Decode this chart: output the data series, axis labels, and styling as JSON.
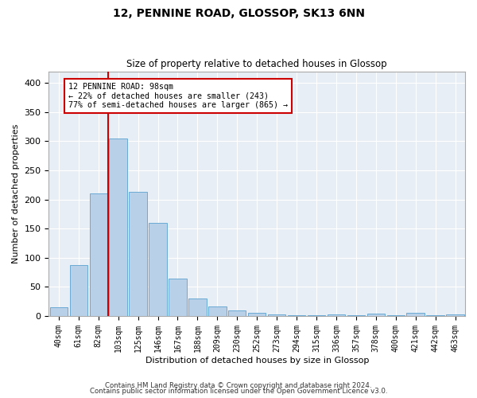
{
  "title": "12, PENNINE ROAD, GLOSSOP, SK13 6NN",
  "subtitle": "Size of property relative to detached houses in Glossop",
  "xlabel": "Distribution of detached houses by size in Glossop",
  "ylabel": "Number of detached properties",
  "categories": [
    "40sqm",
    "61sqm",
    "82sqm",
    "103sqm",
    "125sqm",
    "146sqm",
    "167sqm",
    "188sqm",
    "209sqm",
    "230sqm",
    "252sqm",
    "273sqm",
    "294sqm",
    "315sqm",
    "336sqm",
    "357sqm",
    "378sqm",
    "400sqm",
    "421sqm",
    "442sqm",
    "463sqm"
  ],
  "values": [
    15,
    88,
    210,
    304,
    213,
    160,
    64,
    30,
    16,
    10,
    6,
    3,
    2,
    1,
    3,
    1,
    4,
    1,
    5,
    1,
    3
  ],
  "bar_color": "#b8d0e8",
  "bar_edgecolor": "#6aaad4",
  "red_line_label": "12 PENNINE ROAD: 98sqm",
  "annotation_line1": "← 22% of detached houses are smaller (243)",
  "annotation_line2": "77% of semi-detached houses are larger (865) →",
  "vline_color": "#cc0000",
  "annotation_box_edgecolor": "#cc0000",
  "vline_x": 2.5,
  "ylim": [
    0,
    420
  ],
  "yticks": [
    0,
    50,
    100,
    150,
    200,
    250,
    300,
    350,
    400
  ],
  "background_color": "#e8eef5",
  "footer_line1": "Contains HM Land Registry data © Crown copyright and database right 2024.",
  "footer_line2": "Contains public sector information licensed under the Open Government Licence v3.0."
}
